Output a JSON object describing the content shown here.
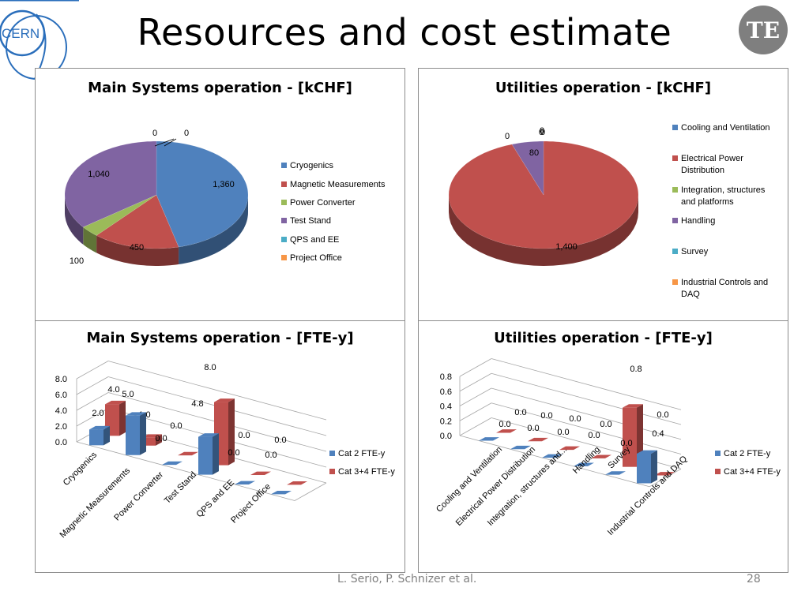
{
  "slide": {
    "title": "Resources and cost estimate",
    "logo_left": "CERN",
    "logo_right": "TE",
    "footer": "L. Serio, P. Schnizer et al.",
    "page_number": "28"
  },
  "colors": {
    "blue": "#4f81bd",
    "red": "#c0504d",
    "green": "#9bbb59",
    "purple": "#8064a2",
    "teal": "#4bacc6",
    "orange": "#f79646"
  },
  "chart_data": [
    {
      "type": "pie",
      "title": "Main Systems operation - [kCHF]",
      "categories": [
        "Cryogenics",
        "Magnetic Measurements",
        "Power Converter",
        "Test Stand",
        "QPS and EE",
        "Project Office"
      ],
      "values": [
        1360,
        450,
        100,
        1040,
        0,
        0
      ],
      "labels": [
        "1,360",
        "450",
        "100",
        "1,040",
        "0",
        "0"
      ],
      "legend": "right",
      "style": "3d"
    },
    {
      "type": "pie",
      "title": "Utilities operation - [kCHF]",
      "categories": [
        "Cooling and Ventilation",
        "Electrical Power Distribution",
        "Integration, structures and platforms",
        "Handling",
        "Survey",
        "Industrial Controls and DAQ"
      ],
      "values": [
        0,
        1400,
        0,
        80,
        0,
        0
      ],
      "labels": [
        "0",
        "1,400",
        "0",
        "80",
        "0",
        "0"
      ],
      "legend": "right",
      "style": "3d"
    },
    {
      "type": "bar",
      "title": "Main Systems operation - [FTE-y]",
      "categories": [
        "Cryogenics",
        "Magnetic Measurements",
        "Power Converter",
        "Test Stand",
        "QPS and EE",
        "Project Office"
      ],
      "series": [
        {
          "name": "Cat 2 FTE-y",
          "values": [
            2.0,
            5.0,
            0.0,
            4.8,
            0.0,
            0.0
          ],
          "labels": [
            "2.0",
            "5.0",
            "0.0",
            "4.8",
            "0.0",
            "0.0"
          ]
        },
        {
          "name": "Cat 3+4 FTE-y",
          "values": [
            4.0,
            1.0,
            0.0,
            8.0,
            0.0,
            0.0
          ],
          "labels": [
            "4.0",
            "1.0",
            "0.0",
            "8.0",
            "0.0",
            "0.0"
          ]
        }
      ],
      "yticks": [
        "0.0",
        "2.0",
        "4.0",
        "6.0",
        "8.0"
      ],
      "ylim": [
        0,
        8
      ],
      "legend": "right",
      "grid": true,
      "style": "3d"
    },
    {
      "type": "bar",
      "title": "Utilities operation - [FTE-y]",
      "categories": [
        "Cooling and Ventilation",
        "Electrical Power Distribution",
        "Integration, structures and...",
        "Handling",
        "Survey",
        "Industrial Controls and DAQ"
      ],
      "series": [
        {
          "name": "Cat 2 FTE-y",
          "values": [
            0.0,
            0.0,
            0.0,
            0.0,
            0.0,
            0.4
          ],
          "labels": [
            "0.0",
            "0.0",
            "0.0",
            "0.0",
            "0.0",
            "0.4"
          ]
        },
        {
          "name": "Cat 3+4 FTE-y",
          "values": [
            0.0,
            0.0,
            0.0,
            0.0,
            0.8,
            0.0
          ],
          "labels": [
            "0.0",
            "0.0",
            "0.0",
            "0.0",
            "0.8",
            "0.0"
          ]
        }
      ],
      "yticks": [
        "0.0",
        "0.2",
        "0.4",
        "0.6",
        "0.8"
      ],
      "ylim": [
        0,
        0.8
      ],
      "legend": "right",
      "grid": true,
      "style": "3d"
    }
  ]
}
